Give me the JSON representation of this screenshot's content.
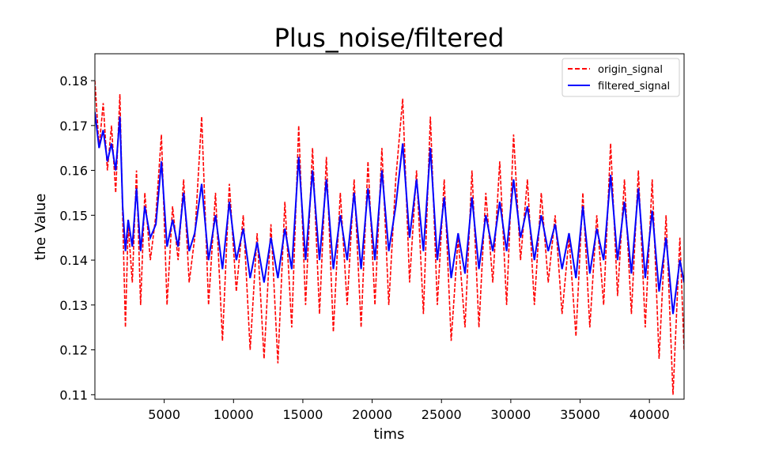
{
  "chart_data": {
    "type": "line",
    "title": "Plus_noise/filtered",
    "xlabel": "tims",
    "ylabel": "the Value",
    "xlim": [
      0,
      42500
    ],
    "ylim": [
      0.109,
      0.186
    ],
    "xticks": [
      5000,
      10000,
      15000,
      20000,
      25000,
      30000,
      35000,
      40000
    ],
    "yticks": [
      0.11,
      0.12,
      0.13,
      0.14,
      0.15,
      0.16,
      0.17,
      0.18
    ],
    "legend_position": "top-right",
    "grid": false,
    "series": [
      {
        "name": "origin_signal",
        "color": "#ff0000",
        "style": "dashed",
        "x": [
          0,
          300,
          600,
          900,
          1200,
          1500,
          1800,
          2000,
          2200,
          2400,
          2700,
          3000,
          3300,
          3600,
          4000,
          4400,
          4800,
          5200,
          5600,
          6000,
          6400,
          6800,
          7200,
          7700,
          8200,
          8700,
          9200,
          9700,
          10200,
          10700,
          11200,
          11700,
          12200,
          12700,
          13200,
          13700,
          14200,
          14700,
          15200,
          15700,
          16200,
          16700,
          17200,
          17700,
          18200,
          18700,
          19200,
          19700,
          20200,
          20700,
          21200,
          21700,
          22200,
          22700,
          23200,
          23700,
          24200,
          24700,
          25200,
          25700,
          26200,
          26700,
          27200,
          27700,
          28200,
          28700,
          29200,
          29700,
          30200,
          30700,
          31200,
          31700,
          32200,
          32700,
          33200,
          33700,
          34200,
          34700,
          35200,
          35700,
          36200,
          36700,
          37200,
          37700,
          38200,
          38700,
          39200,
          39700,
          40200,
          40700,
          41200,
          41700,
          42200,
          42500
        ],
        "values": [
          0.18,
          0.165,
          0.175,
          0.16,
          0.17,
          0.155,
          0.177,
          0.15,
          0.125,
          0.148,
          0.135,
          0.16,
          0.13,
          0.155,
          0.14,
          0.15,
          0.168,
          0.13,
          0.152,
          0.14,
          0.158,
          0.135,
          0.145,
          0.172,
          0.13,
          0.155,
          0.122,
          0.157,
          0.133,
          0.15,
          0.12,
          0.146,
          0.118,
          0.148,
          0.117,
          0.153,
          0.125,
          0.17,
          0.13,
          0.165,
          0.128,
          0.163,
          0.124,
          0.155,
          0.13,
          0.158,
          0.125,
          0.162,
          0.13,
          0.165,
          0.13,
          0.158,
          0.176,
          0.135,
          0.16,
          0.128,
          0.172,
          0.13,
          0.158,
          0.122,
          0.145,
          0.125,
          0.16,
          0.125,
          0.155,
          0.135,
          0.162,
          0.13,
          0.168,
          0.14,
          0.158,
          0.13,
          0.155,
          0.135,
          0.15,
          0.128,
          0.145,
          0.123,
          0.155,
          0.125,
          0.15,
          0.13,
          0.166,
          0.132,
          0.158,
          0.128,
          0.16,
          0.125,
          0.158,
          0.118,
          0.15,
          0.11,
          0.145,
          0.12
        ]
      },
      {
        "name": "filtered_signal",
        "color": "#0000ff",
        "style": "solid",
        "x": [
          0,
          300,
          600,
          900,
          1200,
          1500,
          1800,
          2000,
          2200,
          2400,
          2700,
          3000,
          3300,
          3600,
          4000,
          4400,
          4800,
          5200,
          5600,
          6000,
          6400,
          6800,
          7200,
          7700,
          8200,
          8700,
          9200,
          9700,
          10200,
          10700,
          11200,
          11700,
          12200,
          12700,
          13200,
          13700,
          14200,
          14700,
          15200,
          15700,
          16200,
          16700,
          17200,
          17700,
          18200,
          18700,
          19200,
          19700,
          20200,
          20700,
          21200,
          21700,
          22200,
          22700,
          23200,
          23700,
          24200,
          24700,
          25200,
          25700,
          26200,
          26700,
          27200,
          27700,
          28200,
          28700,
          29200,
          29700,
          30200,
          30700,
          31200,
          31700,
          32200,
          32700,
          33200,
          33700,
          34200,
          34700,
          35200,
          35700,
          36200,
          36700,
          37200,
          37700,
          38200,
          38700,
          39200,
          39700,
          40200,
          40700,
          41200,
          41700,
          42200,
          42500
        ],
        "values": [
          0.173,
          0.165,
          0.169,
          0.162,
          0.166,
          0.16,
          0.172,
          0.152,
          0.142,
          0.149,
          0.143,
          0.156,
          0.142,
          0.152,
          0.145,
          0.148,
          0.162,
          0.143,
          0.149,
          0.143,
          0.155,
          0.142,
          0.146,
          0.157,
          0.14,
          0.15,
          0.138,
          0.153,
          0.14,
          0.147,
          0.136,
          0.144,
          0.135,
          0.145,
          0.136,
          0.147,
          0.138,
          0.163,
          0.14,
          0.16,
          0.14,
          0.158,
          0.138,
          0.15,
          0.14,
          0.155,
          0.138,
          0.156,
          0.14,
          0.16,
          0.142,
          0.152,
          0.166,
          0.145,
          0.158,
          0.142,
          0.165,
          0.14,
          0.154,
          0.136,
          0.146,
          0.137,
          0.154,
          0.138,
          0.15,
          0.142,
          0.153,
          0.142,
          0.158,
          0.145,
          0.152,
          0.14,
          0.15,
          0.142,
          0.148,
          0.138,
          0.146,
          0.136,
          0.152,
          0.137,
          0.147,
          0.14,
          0.159,
          0.14,
          0.153,
          0.137,
          0.156,
          0.136,
          0.151,
          0.133,
          0.145,
          0.128,
          0.14,
          0.135
        ]
      }
    ]
  }
}
